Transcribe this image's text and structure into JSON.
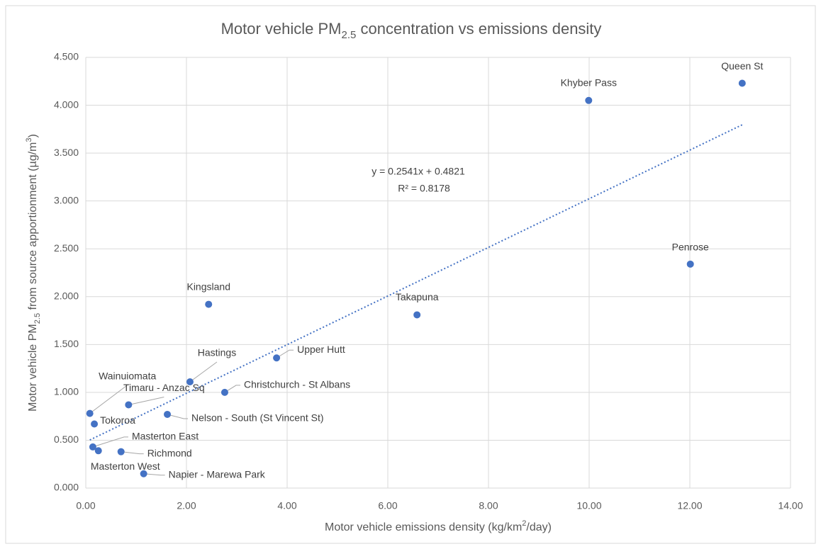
{
  "chart_data": {
    "type": "scatter",
    "title": [
      "Motor vehicle PM",
      "2.5",
      " concentration vs emissions density"
    ],
    "xlabel": [
      "Motor vehicle emissions density (kg/km",
      "2",
      "/day)"
    ],
    "ylabel": [
      "Motor vehicle PM",
      "2.5",
      " from source apportionment (µg/m",
      "3",
      ")"
    ],
    "color": "#4472c4",
    "grid": true,
    "points": [
      {
        "name": "Queen St",
        "x": 13.04,
        "y": 4.23
      },
      {
        "name": "Khyber Pass",
        "x": 9.99,
        "y": 4.05
      },
      {
        "name": "Penrose",
        "x": 12.01,
        "y": 2.34
      },
      {
        "name": "Takapuna",
        "x": 6.58,
        "y": 1.81
      },
      {
        "name": "Kingsland",
        "x": 2.44,
        "y": 1.92
      },
      {
        "name": "Upper Hutt",
        "x": 3.79,
        "y": 1.36
      },
      {
        "name": "Hastings",
        "x": 2.07,
        "y": 1.11
      },
      {
        "name": "Christchurch - St Albans",
        "x": 2.76,
        "y": 1.0
      },
      {
        "name": "Wainuiomata",
        "x": 0.08,
        "y": 0.78
      },
      {
        "name": "Timaru - Anzac Sq",
        "x": 0.85,
        "y": 0.87
      },
      {
        "name": "Nelson - South (St Vincent St)",
        "x": 1.62,
        "y": 0.77
      },
      {
        "name": "Tokoroa",
        "x": 0.17,
        "y": 0.67
      },
      {
        "name": "Masterton East",
        "x": 0.14,
        "y": 0.43
      },
      {
        "name": "Masterton West",
        "x": 0.25,
        "y": 0.39
      },
      {
        "name": "Richmond",
        "x": 0.7,
        "y": 0.38
      },
      {
        "name": "Napier - Marewa Park",
        "x": 1.15,
        "y": 0.15
      }
    ],
    "trendline": {
      "slope": 0.2541,
      "intercept": 0.4821,
      "equation": "y = 0.2541x + 0.4821",
      "r_squared": "R² = 0.8178"
    },
    "xlim": [
      0,
      14
    ],
    "xticks": [
      {
        "value": 0,
        "label": "0.00"
      },
      {
        "value": 2,
        "label": "2.00"
      },
      {
        "value": 4,
        "label": "4.00"
      },
      {
        "value": 6,
        "label": "6.00"
      },
      {
        "value": 8,
        "label": "8.00"
      },
      {
        "value": 10,
        "label": "10.00"
      },
      {
        "value": 12,
        "label": "12.00"
      },
      {
        "value": 14,
        "label": "14.00"
      }
    ],
    "ylim": [
      0,
      4.5
    ],
    "yticks": [
      {
        "value": 0,
        "label": "0.000"
      },
      {
        "value": 0.5,
        "label": "0.500"
      },
      {
        "value": 1,
        "label": "1.000"
      },
      {
        "value": 1.5,
        "label": "1.500"
      },
      {
        "value": 2,
        "label": "2.000"
      },
      {
        "value": 2.5,
        "label": "2.500"
      },
      {
        "value": 3,
        "label": "3.000"
      },
      {
        "value": 3.5,
        "label": "3.500"
      },
      {
        "value": 4,
        "label": "4.000"
      },
      {
        "value": 4.5,
        "label": "4.500"
      }
    ]
  }
}
